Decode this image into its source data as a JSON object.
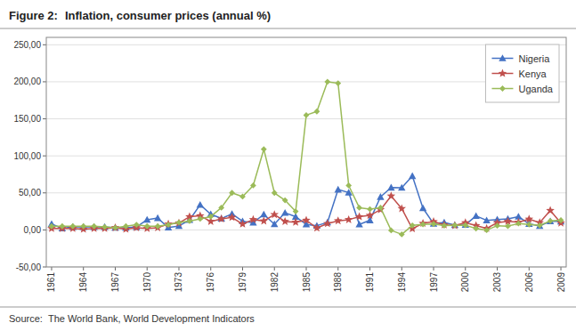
{
  "chart_data": {
    "type": "line",
    "title": "Inflation, consumer prices (annual %)",
    "annotations": [
      "Figure 2:",
      "Source:",
      "The World Bank, World Development Indicators"
    ],
    "x": [
      1961,
      1962,
      1963,
      1964,
      1965,
      1966,
      1967,
      1968,
      1969,
      1970,
      1971,
      1972,
      1973,
      1974,
      1975,
      1976,
      1977,
      1978,
      1979,
      1980,
      1981,
      1982,
      1983,
      1984,
      1985,
      1986,
      1987,
      1988,
      1989,
      1990,
      1991,
      1992,
      1993,
      1994,
      1995,
      1996,
      1997,
      1998,
      1999,
      2000,
      2001,
      2002,
      2003,
      2004,
      2005,
      2006,
      2007,
      2008,
      2009
    ],
    "series": [
      {
        "name": "Nigeria",
        "color": "#4472C4",
        "marker": "triangle",
        "values": [
          8.0,
          2.0,
          4.0,
          4.0,
          4.0,
          4.0,
          3.0,
          3.0,
          4.0,
          13.8,
          16.0,
          3.2,
          5.4,
          13.4,
          33.9,
          21.2,
          15.4,
          21.7,
          11.7,
          9.9,
          20.9,
          7.7,
          23.2,
          17.8,
          7.4,
          5.7,
          10.2,
          54.5,
          50.5,
          7.4,
          13.0,
          44.6,
          57.2,
          57.0,
          72.8,
          29.3,
          8.5,
          10.0,
          6.6,
          6.9,
          18.9,
          12.9,
          14.0,
          15.0,
          17.9,
          8.2,
          5.4,
          11.6,
          11.5
        ]
      },
      {
        "name": "Kenya",
        "color": "#C0504D",
        "marker": "star",
        "values": [
          2.0,
          2.0,
          2.0,
          1.0,
          2.0,
          2.0,
          3.0,
          1.0,
          3.0,
          2.0,
          3.0,
          8.0,
          9.3,
          17.8,
          19.0,
          11.4,
          14.8,
          16.9,
          7.9,
          13.9,
          12.0,
          20.7,
          11.4,
          10.3,
          13.1,
          2.5,
          8.6,
          12.3,
          13.8,
          17.8,
          19.6,
          27.3,
          45.8,
          28.8,
          1.6,
          8.9,
          11.2,
          6.7,
          5.8,
          9.8,
          5.8,
          2.0,
          9.8,
          11.6,
          10.3,
          14.5,
          9.8,
          26.2,
          9.3
        ]
      },
      {
        "name": "Uganda",
        "color": "#9BBB59",
        "marker": "diamond",
        "values": [
          5.0,
          5.0,
          5.0,
          5.0,
          5.0,
          4.0,
          3.0,
          5.0,
          7.0,
          5.0,
          5.0,
          7.0,
          10.0,
          12.0,
          15.0,
          18.0,
          30.0,
          50.0,
          45.0,
          60.0,
          109.0,
          50.0,
          40.0,
          25.0,
          155.0,
          160.0,
          200.0,
          198.0,
          60.0,
          30.0,
          28.0,
          30.0,
          -0.6,
          -6.0,
          6.1,
          7.5,
          8.0,
          5.8,
          6.3,
          6.3,
          1.9,
          -0.3,
          5.7,
          5.1,
          8.7,
          7.3,
          6.1,
          12.1,
          13.1
        ]
      }
    ],
    "xlim": [
      1960.5,
      2009.5
    ],
    "xticks": [
      1961,
      1964,
      1967,
      1970,
      1973,
      1976,
      1979,
      1982,
      1985,
      1988,
      1991,
      1994,
      1997,
      2000,
      2003,
      2006,
      2009
    ],
    "ylim": [
      -50,
      260
    ],
    "yticks": [
      {
        "value": -50,
        "label": "-50,00"
      },
      {
        "value": 0,
        "label": "0,00"
      },
      {
        "value": 50,
        "label": "50,00"
      },
      {
        "value": 100,
        "label": "100,00"
      },
      {
        "value": 150,
        "label": "150,00"
      },
      {
        "value": 200,
        "label": "200,00"
      },
      {
        "value": 250,
        "label": "250,00"
      }
    ],
    "grid": true,
    "legend": "top-right"
  }
}
